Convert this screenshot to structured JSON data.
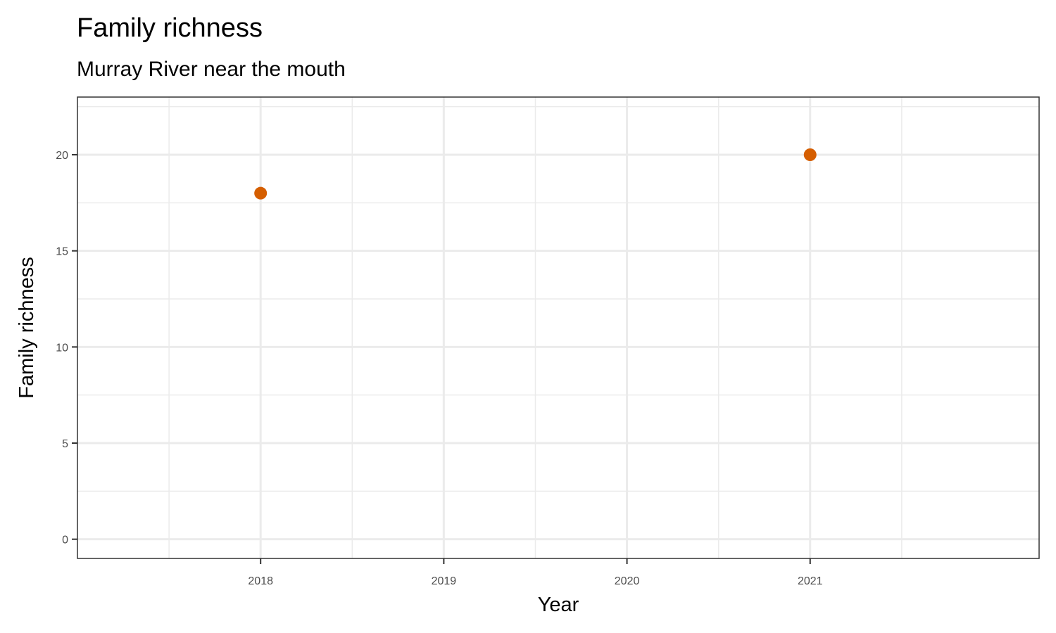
{
  "chart_data": {
    "type": "scatter",
    "title": "Family richness",
    "subtitle": "Murray River near the mouth",
    "xlabel": "Year",
    "ylabel": "Family richness",
    "x_ticks": [
      2018,
      2019,
      2020,
      2021
    ],
    "y_ticks": [
      0,
      5,
      10,
      15,
      20
    ],
    "xlim": [
      2017,
      2022.25
    ],
    "ylim": [
      -1,
      23
    ],
    "grid": true,
    "legend": "none",
    "point_color": "#D55E00",
    "series": [
      {
        "points": [
          {
            "x": 2018,
            "y": 18
          },
          {
            "x": 2021,
            "y": 20
          }
        ]
      }
    ]
  }
}
